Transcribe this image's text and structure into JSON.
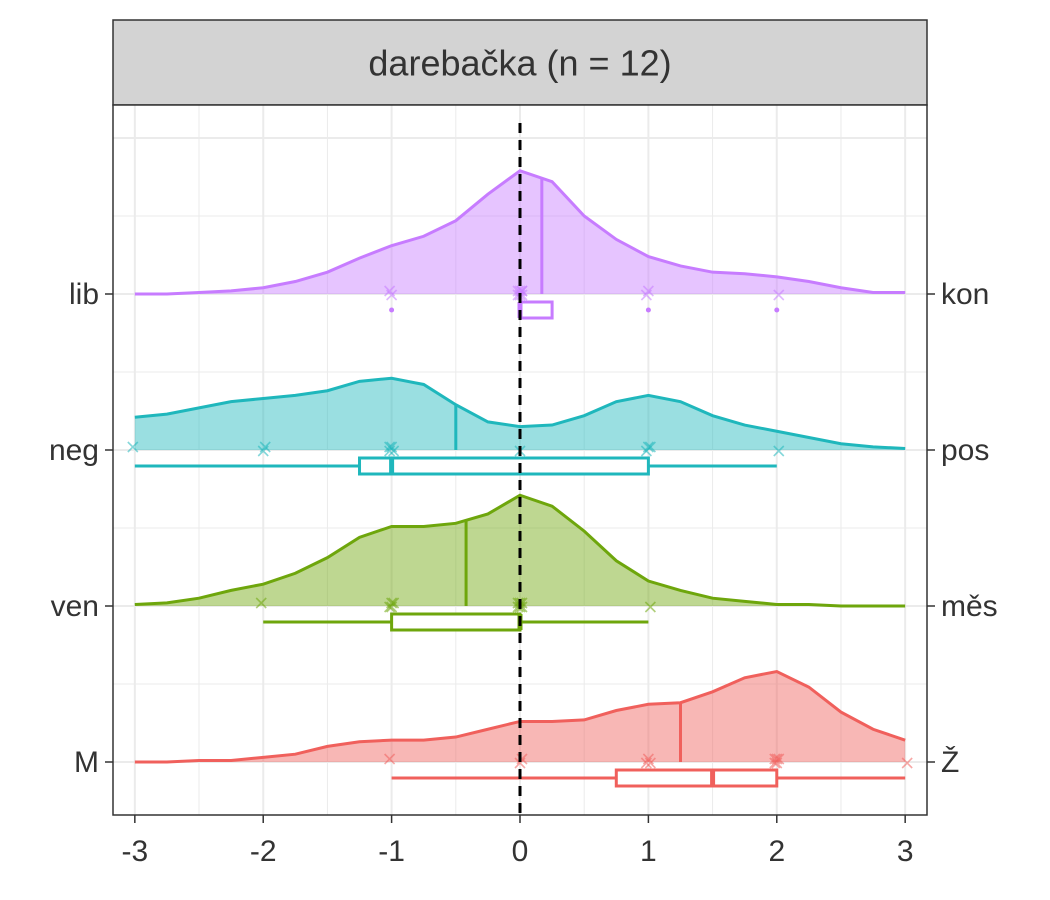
{
  "chart_data": {
    "type": "ridgeline",
    "title": "darebačka (n = 12)",
    "x": [
      -3,
      -2.75,
      -2.5,
      -2.25,
      -2,
      -1.75,
      -1.5,
      -1.25,
      -1,
      -0.75,
      -0.5,
      -0.25,
      0,
      0.25,
      0.5,
      0.75,
      1,
      1.25,
      1.5,
      1.75,
      2,
      2.25,
      2.5,
      2.75,
      3
    ],
    "xlim": [
      -3.17,
      3.17
    ],
    "xticks": [
      -3,
      -2,
      -1,
      0,
      1,
      2,
      3
    ],
    "ref_line": 0,
    "grid": true,
    "series": [
      {
        "name": "lib",
        "right_label": "kon",
        "color": "#c77cff",
        "density": [
          0,
          0,
          0.01,
          0.02,
          0.04,
          0.08,
          0.14,
          0.23,
          0.31,
          0.37,
          0.47,
          0.64,
          0.79,
          0.72,
          0.5,
          0.35,
          0.24,
          0.18,
          0.14,
          0.13,
          0.11,
          0.08,
          0.04,
          0.01,
          0.01
        ],
        "mean": 0.17,
        "points": [
          -1,
          -1,
          0,
          0,
          0,
          0,
          0,
          0,
          0,
          1,
          1,
          2
        ],
        "box": {
          "whisker_low": 0,
          "q1": 0,
          "median": 0,
          "q3": 0.25,
          "whisker_high": 0.25
        },
        "outliers": [
          -1,
          1,
          2
        ]
      },
      {
        "name": "neg",
        "right_label": "pos",
        "color": "#1fb7bc",
        "density": [
          0.21,
          0.23,
          0.27,
          0.31,
          0.33,
          0.35,
          0.38,
          0.44,
          0.46,
          0.42,
          0.29,
          0.18,
          0.15,
          0.16,
          0.22,
          0.31,
          0.35,
          0.31,
          0.22,
          0.16,
          0.12,
          0.08,
          0.04,
          0.02,
          0.01
        ],
        "mean": -0.5,
        "points": [
          -3,
          -2,
          -2,
          -1,
          -1,
          -1,
          -1,
          0,
          1,
          1,
          1,
          2
        ],
        "box": {
          "whisker_low": -3,
          "q1": -1.25,
          "median": -1,
          "q3": 1,
          "whisker_high": 2
        }
      },
      {
        "name": "ven",
        "right_label": "měs",
        "color": "#6ea60c",
        "density": [
          0.01,
          0.02,
          0.05,
          0.1,
          0.14,
          0.21,
          0.31,
          0.44,
          0.51,
          0.51,
          0.53,
          0.59,
          0.71,
          0.64,
          0.48,
          0.29,
          0.16,
          0.1,
          0.05,
          0.03,
          0.01,
          0.01,
          0,
          0,
          0
        ],
        "mean": -0.42,
        "points": [
          -2,
          -1,
          -1,
          -1,
          -1,
          0,
          0,
          0,
          0,
          0,
          0,
          1
        ],
        "box": {
          "whisker_low": -2,
          "q1": -1,
          "median": 0,
          "q3": 0,
          "whisker_high": 1
        }
      },
      {
        "name": "M",
        "right_label": "Ž",
        "color": "#f0605c",
        "density": [
          0,
          0,
          0.01,
          0.01,
          0.03,
          0.05,
          0.1,
          0.13,
          0.14,
          0.14,
          0.16,
          0.21,
          0.26,
          0.26,
          0.27,
          0.33,
          0.37,
          0.38,
          0.45,
          0.54,
          0.58,
          0.48,
          0.32,
          0.21,
          0.14
        ],
        "mean": 1.25,
        "points": [
          -1,
          0,
          0,
          1,
          1,
          1,
          2,
          2,
          2,
          2,
          2,
          3
        ],
        "box": {
          "whisker_low": -1,
          "q1": 0.75,
          "median": 1.5,
          "q3": 2,
          "whisker_high": 3
        }
      }
    ]
  }
}
